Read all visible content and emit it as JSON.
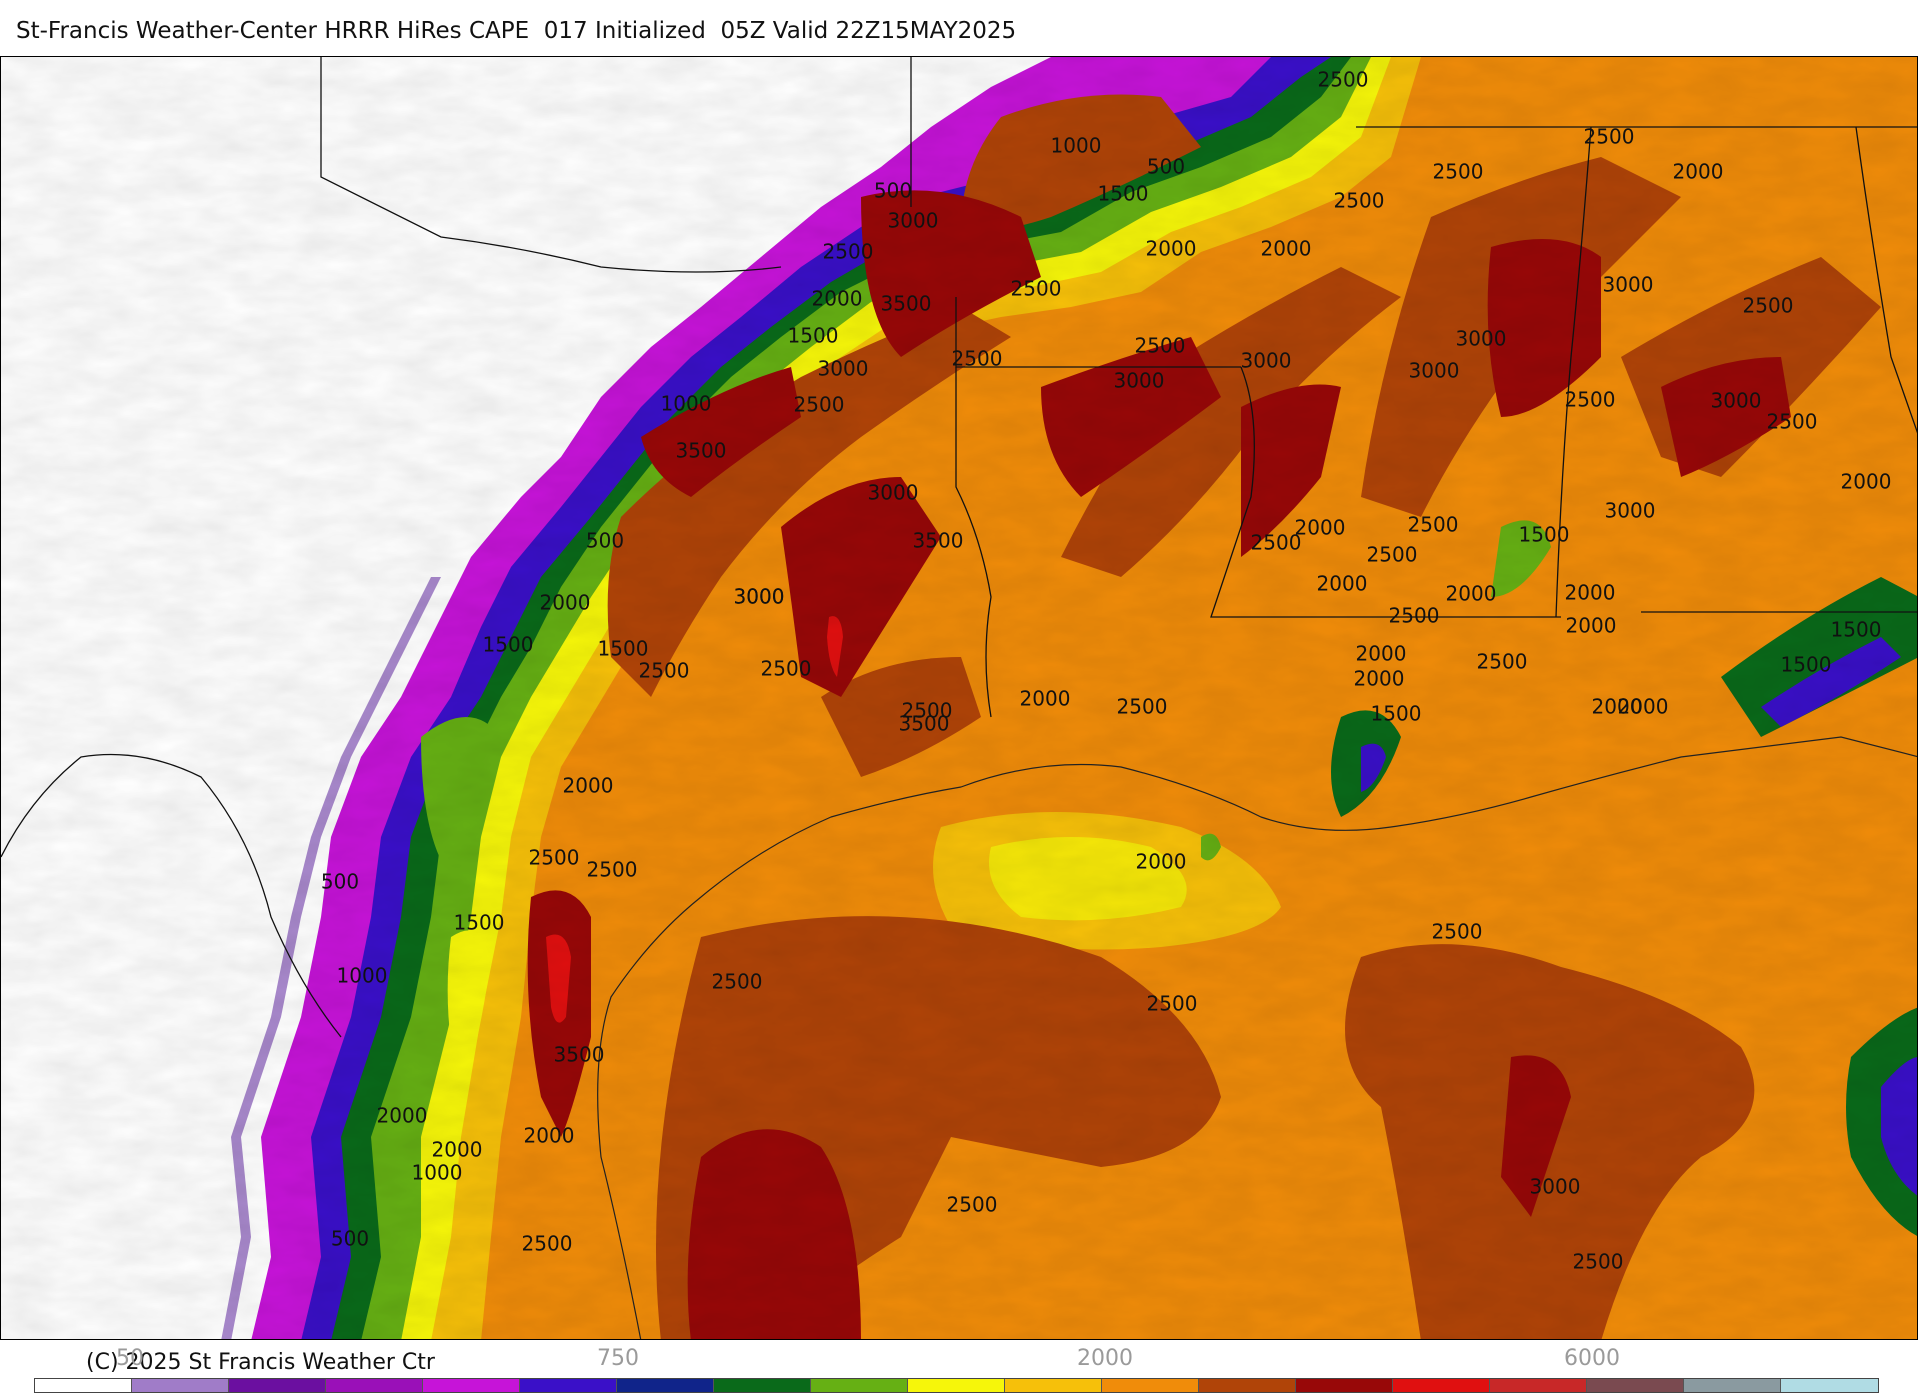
{
  "title": "St-Francis Weather-Center HRRR HiRes CAPE  017 Initialized  05Z Valid 22Z15MAY2025",
  "copyright": "(C) 2025 St Francis Weather Ctr",
  "colorbar": {
    "tick_labels": [
      "50",
      "750",
      "2000",
      "6000"
    ],
    "colors": [
      "#ffffff",
      "#a07cc8",
      "#6b0fa0",
      "#9a10b8",
      "#c614d8",
      "#3a10c8",
      "#10248a",
      "#0a6a1a",
      "#66b014",
      "#f6f60a",
      "#f6c00a",
      "#f08c0a",
      "#b04408",
      "#980808",
      "#e01010",
      "#c82828",
      "#7a4a50",
      "#8a9aa0",
      "#b0dce4"
    ]
  },
  "labels": [
    {
      "text": "2500"
    },
    {
      "text": "2500"
    },
    {
      "text": "1000"
    },
    {
      "text": "500"
    },
    {
      "text": "2500"
    },
    {
      "text": "2000"
    },
    {
      "text": "500"
    },
    {
      "text": "1500"
    },
    {
      "text": "3000"
    },
    {
      "text": "2500"
    },
    {
      "text": "2000"
    },
    {
      "text": "2000"
    },
    {
      "text": "2000"
    },
    {
      "text": "2500"
    },
    {
      "text": "3500"
    },
    {
      "text": "3000"
    },
    {
      "text": "2500"
    },
    {
      "text": "1500"
    },
    {
      "text": "3000"
    },
    {
      "text": "2500"
    },
    {
      "text": "2500"
    },
    {
      "text": "3000"
    },
    {
      "text": "3000"
    },
    {
      "text": "2500"
    },
    {
      "text": "3000"
    },
    {
      "text": "1000"
    },
    {
      "text": "2500"
    },
    {
      "text": "3000"
    },
    {
      "text": "2500"
    },
    {
      "text": "2500"
    },
    {
      "text": "3500"
    },
    {
      "text": "3000"
    },
    {
      "text": "2000"
    },
    {
      "text": "500"
    },
    {
      "text": "3500"
    },
    {
      "text": "2500"
    },
    {
      "text": "2000"
    },
    {
      "text": "2500"
    },
    {
      "text": "3000"
    },
    {
      "text": "1500"
    },
    {
      "text": "2000"
    },
    {
      "text": "2500"
    },
    {
      "text": "3000"
    },
    {
      "text": "2000"
    },
    {
      "text": "2000"
    },
    {
      "text": "1500"
    },
    {
      "text": "2500"
    },
    {
      "text": "1500"
    },
    {
      "text": "3000"
    },
    {
      "text": "2500"
    },
    {
      "text": "2000"
    },
    {
      "text": "2500"
    },
    {
      "text": "2000"
    },
    {
      "text": "1500"
    },
    {
      "text": "2000"
    },
    {
      "text": "2500"
    },
    {
      "text": "2000"
    },
    {
      "text": "1500"
    },
    {
      "text": "2000"
    },
    {
      "text": "2000"
    },
    {
      "text": "3000"
    },
    {
      "text": "2500"
    },
    {
      "text": "2500"
    },
    {
      "text": "2000"
    },
    {
      "text": "500"
    },
    {
      "text": "1500"
    },
    {
      "text": "3500"
    },
    {
      "text": "1000"
    },
    {
      "text": "1500"
    },
    {
      "text": "2500"
    },
    {
      "text": "2500"
    },
    {
      "text": "2500"
    },
    {
      "text": "2500"
    },
    {
      "text": "3500"
    },
    {
      "text": "2000"
    },
    {
      "text": "2000"
    },
    {
      "text": "2000"
    },
    {
      "text": "2000"
    },
    {
      "text": "1000"
    },
    {
      "text": "2000"
    },
    {
      "text": "2500"
    },
    {
      "text": "3000"
    },
    {
      "text": "2500"
    },
    {
      "text": "500"
    },
    {
      "text": "2500"
    },
    {
      "text": "2500"
    }
  ]
}
